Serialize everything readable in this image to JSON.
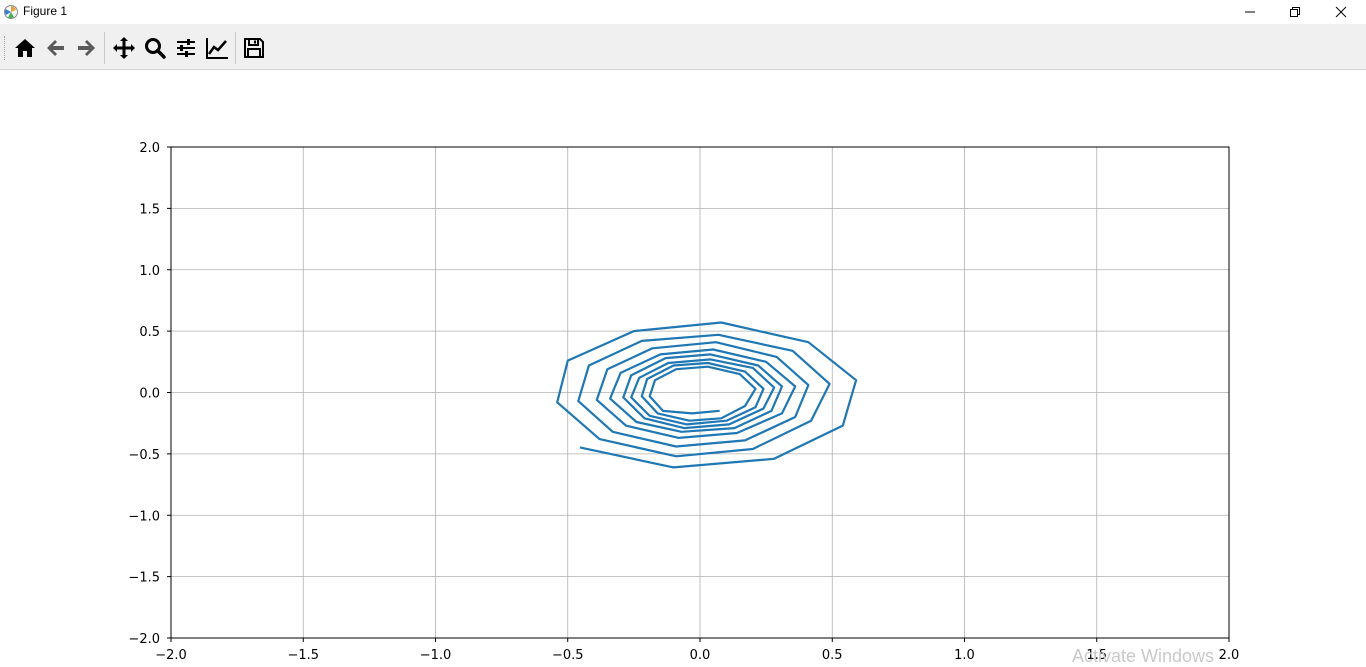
{
  "window": {
    "title": "Figure 1",
    "controls": [
      "minimize",
      "restore",
      "close"
    ]
  },
  "toolbar": {
    "buttons": [
      {
        "icon": "home-icon",
        "action": "home"
      },
      {
        "icon": "back-arrow-icon",
        "action": "back"
      },
      {
        "icon": "forward-arrow-icon",
        "action": "forward"
      },
      {
        "icon": "pan-move-icon",
        "action": "pan"
      },
      {
        "icon": "zoom-magnifier-icon",
        "action": "zoom"
      },
      {
        "icon": "configure-subplots-icon",
        "action": "subplots"
      },
      {
        "icon": "edit-axis-icon",
        "action": "customize"
      },
      {
        "icon": "save-disk-icon",
        "action": "save"
      }
    ]
  },
  "watermark": "Activate Windows",
  "chart_data": {
    "type": "line",
    "title": "",
    "xlabel": "",
    "ylabel": "",
    "xlim": [
      -2.0,
      2.0
    ],
    "ylim": [
      -2.0,
      2.0
    ],
    "grid": true,
    "xticks": [
      "−2.0",
      "−1.5",
      "−1.0",
      "−0.5",
      "0.0",
      "0.5",
      "1.0",
      "1.5",
      "2.0"
    ],
    "yticks": [
      "2.0",
      "1.5",
      "1.0",
      "0.5",
      "0.0",
      "−0.5",
      "−1.0",
      "−1.5",
      "−2.0"
    ],
    "line_color": "#1f77b4",
    "series": [
      {
        "x": [
          -0.45,
          -0.1,
          0.28,
          0.54,
          0.59,
          0.41,
          0.08,
          -0.25,
          -0.5,
          -0.54,
          -0.38,
          -0.09,
          0.2,
          0.42,
          0.49,
          0.35,
          0.07,
          -0.22,
          -0.42,
          -0.46,
          -0.33,
          -0.09,
          0.17,
          0.36,
          0.41,
          0.29,
          0.06,
          -0.18,
          -0.35,
          -0.39,
          -0.28,
          -0.08,
          0.14,
          0.31,
          0.36,
          0.25,
          0.05,
          -0.15,
          -0.3,
          -0.34,
          -0.24,
          -0.07,
          0.13,
          0.27,
          0.31,
          0.22,
          0.04,
          -0.13,
          -0.26,
          -0.29,
          -0.21,
          -0.06,
          0.11,
          0.24,
          0.28,
          0.2,
          0.04,
          -0.12,
          -0.23,
          -0.26,
          -0.19,
          -0.05,
          0.1,
          0.21,
          0.24,
          0.17,
          0.03,
          -0.1,
          -0.2,
          -0.22,
          -0.16,
          -0.04,
          0.08,
          0.17,
          0.21,
          0.15,
          0.03,
          -0.09,
          -0.17,
          -0.19,
          -0.14,
          -0.03,
          0.07
        ],
        "y": [
          -0.45,
          -0.61,
          -0.54,
          -0.27,
          0.1,
          0.41,
          0.57,
          0.5,
          0.26,
          -0.08,
          -0.38,
          -0.52,
          -0.46,
          -0.23,
          0.07,
          0.34,
          0.47,
          0.42,
          0.22,
          -0.07,
          -0.32,
          -0.44,
          -0.39,
          -0.2,
          0.06,
          0.29,
          0.41,
          0.36,
          0.19,
          -0.06,
          -0.27,
          -0.37,
          -0.33,
          -0.17,
          0.05,
          0.25,
          0.35,
          0.31,
          0.16,
          -0.05,
          -0.24,
          -0.32,
          -0.29,
          -0.15,
          0.05,
          0.22,
          0.31,
          0.28,
          0.14,
          -0.04,
          -0.21,
          -0.29,
          -0.26,
          -0.13,
          0.04,
          0.2,
          0.27,
          0.24,
          0.12,
          -0.04,
          -0.19,
          -0.26,
          -0.23,
          -0.12,
          0.03,
          0.17,
          0.24,
          0.22,
          0.11,
          -0.03,
          -0.17,
          -0.23,
          -0.21,
          -0.11,
          0.03,
          0.15,
          0.21,
          0.19,
          0.1,
          -0.03,
          -0.15,
          -0.17,
          -0.15
        ]
      }
    ]
  }
}
